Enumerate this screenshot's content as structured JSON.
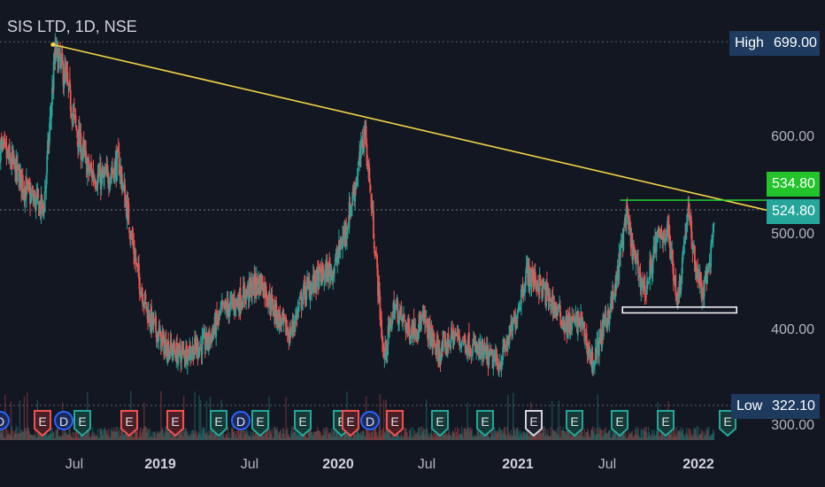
{
  "header": {
    "symbol": "SIS LTD, 1D, NSE"
  },
  "price_labels": {
    "high_label": "High",
    "high_value": "699.00",
    "low_label": "Low",
    "low_value": "322.10",
    "resistance": "534.80",
    "last": "524.80"
  },
  "colors": {
    "background": "#131722",
    "up": "#26a69a",
    "down": "#ef5350",
    "trendline": "#f5d547",
    "resistance_line": "#22e32f",
    "support_box": "#ffffff",
    "earnings_red": "#ef5350",
    "earnings_green": "#26a69a",
    "dividend_blue": "#2962ff",
    "text": "#b2b5be"
  },
  "chart_data": {
    "type": "candlestick",
    "title": "SIS LTD, 1D, NSE",
    "y_axis_ticks": [
      "600.00",
      "500.00",
      "400.00",
      "300.00"
    ],
    "ylim": [
      290,
      730
    ],
    "x_axis_ticks": [
      "Jul",
      "2019",
      "Jul",
      "2020",
      "Jul",
      "2021",
      "Jul",
      "2022"
    ],
    "x_range": [
      "2018-02-01",
      "2022-05-15"
    ],
    "high": 699.0,
    "low": 322.1,
    "last_price": 524.8,
    "series": [
      {
        "values": [
          [
            "2018-02-01",
            590
          ],
          [
            "2018-03-01",
            570
          ],
          [
            "2018-04-01",
            540
          ],
          [
            "2018-05-01",
            525
          ],
          [
            "2018-05-25",
            690
          ],
          [
            "2018-06-15",
            660
          ],
          [
            "2018-07-10",
            600
          ],
          [
            "2018-08-01",
            565
          ],
          [
            "2018-09-01",
            555
          ],
          [
            "2018-10-01",
            575
          ],
          [
            "2018-10-20",
            520
          ],
          [
            "2018-11-10",
            455
          ],
          [
            "2018-12-01",
            415
          ],
          [
            "2019-01-01",
            385
          ],
          [
            "2019-02-01",
            375
          ],
          [
            "2019-03-01",
            380
          ],
          [
            "2019-04-01",
            388
          ],
          [
            "2019-05-01",
            420
          ],
          [
            "2019-06-01",
            430
          ],
          [
            "2019-07-01",
            445
          ],
          [
            "2019-07-20",
            450
          ],
          [
            "2019-08-20",
            415
          ],
          [
            "2019-09-15",
            395
          ],
          [
            "2019-10-15",
            440
          ],
          [
            "2019-11-15",
            455
          ],
          [
            "2019-12-15",
            465
          ],
          [
            "2020-01-10",
            510
          ],
          [
            "2020-02-05",
            575
          ],
          [
            "2020-02-15",
            610
          ],
          [
            "2020-03-05",
            500
          ],
          [
            "2020-03-25",
            370
          ],
          [
            "2020-04-15",
            425
          ],
          [
            "2020-05-15",
            400
          ],
          [
            "2020-06-15",
            410
          ],
          [
            "2020-07-15",
            375
          ],
          [
            "2020-08-15",
            395
          ],
          [
            "2020-09-15",
            385
          ],
          [
            "2020-10-15",
            375
          ],
          [
            "2020-11-15",
            365
          ],
          [
            "2020-12-15",
            405
          ],
          [
            "2021-01-10",
            460
          ],
          [
            "2021-02-01",
            450
          ],
          [
            "2021-03-01",
            430
          ],
          [
            "2021-04-01",
            405
          ],
          [
            "2021-05-01",
            410
          ],
          [
            "2021-05-25",
            365
          ],
          [
            "2021-06-15",
            400
          ],
          [
            "2021-07-10",
            440
          ],
          [
            "2021-08-01",
            520
          ],
          [
            "2021-08-20",
            470
          ],
          [
            "2021-09-10",
            440
          ],
          [
            "2021-10-01",
            490
          ],
          [
            "2021-10-25",
            505
          ],
          [
            "2021-11-15",
            430
          ],
          [
            "2021-12-05",
            525
          ],
          [
            "2021-12-20",
            470
          ],
          [
            "2022-01-05",
            435
          ],
          [
            "2022-01-20",
            475
          ],
          [
            "2022-01-28",
            522
          ]
        ]
      }
    ],
    "annotations": {
      "trendline": {
        "from": [
          "2018-05-20",
          696
        ],
        "to": [
          "2022-05-15",
          524.5
        ],
        "color": "yellow"
      },
      "resistance": {
        "from": [
          "2021-07-20",
          534.8
        ],
        "to": [
          "2022-05-15",
          534.8
        ],
        "color": "green"
      },
      "support_box": {
        "from": [
          "2021-07-25",
          418
        ],
        "to": [
          "2022-03-15",
          424
        ],
        "color": "white"
      },
      "event_badges": [
        "E",
        "D",
        "E",
        "D",
        "E",
        "E",
        "E",
        "E",
        "D",
        "E",
        "E",
        "E",
        "D",
        "E",
        "E",
        "E",
        "E",
        "E",
        "E",
        "E",
        "E",
        "E",
        "E"
      ],
      "dotted_levels": [
        699.0,
        322.1,
        524.8
      ]
    }
  }
}
